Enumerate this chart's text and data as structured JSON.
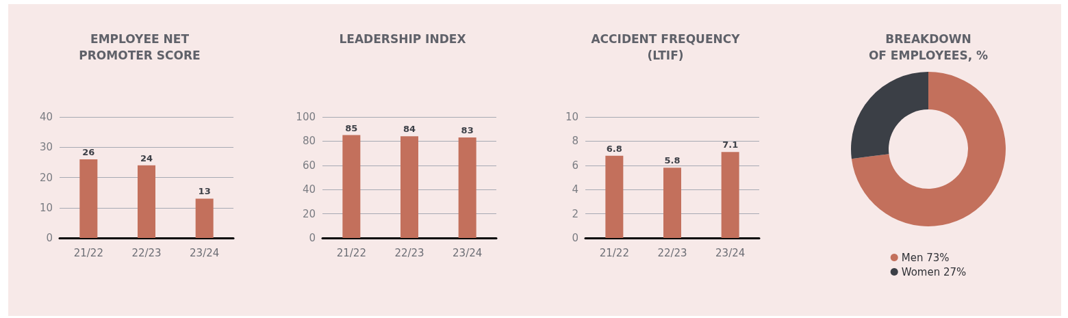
{
  "chart_data": [
    {
      "type": "bar",
      "title": "EMPLOYEE NET\nPROMOTER SCORE",
      "categories": [
        "21/22",
        "22/23",
        "23/24"
      ],
      "values": [
        26,
        24,
        13
      ],
      "color": "#c3705c",
      "ylim": [
        0,
        40
      ],
      "yticks": [
        0,
        10,
        20,
        30,
        40
      ],
      "grid": "y",
      "data_labels": true
    },
    {
      "type": "bar",
      "title": "LEADERSHIP INDEX",
      "categories": [
        "21/22",
        "22/23",
        "23/24"
      ],
      "values": [
        85,
        84,
        83
      ],
      "color": "#c3705c",
      "ylim": [
        0,
        100
      ],
      "yticks": [
        0,
        20,
        40,
        60,
        80,
        100
      ],
      "grid": "y",
      "data_labels": true
    },
    {
      "type": "bar",
      "title": "ACCIDENT FREQUENCY\n(LTIF)",
      "categories": [
        "21/22",
        "22/23",
        "23/24"
      ],
      "values": [
        6.8,
        5.8,
        7.1
      ],
      "color": "#c3705c",
      "ylim": [
        0,
        10
      ],
      "yticks": [
        0,
        2,
        4,
        6,
        8,
        10
      ],
      "grid": "y",
      "data_labels": true
    },
    {
      "type": "donut",
      "title": "BREAKDOWN\nOF EMPLOYEES, %",
      "categories": [
        "Men 73%",
        "Women 27%"
      ],
      "values": [
        73,
        27
      ],
      "colors": [
        "#c3705c",
        "#3b3f46"
      ],
      "legend": "bottom"
    }
  ]
}
